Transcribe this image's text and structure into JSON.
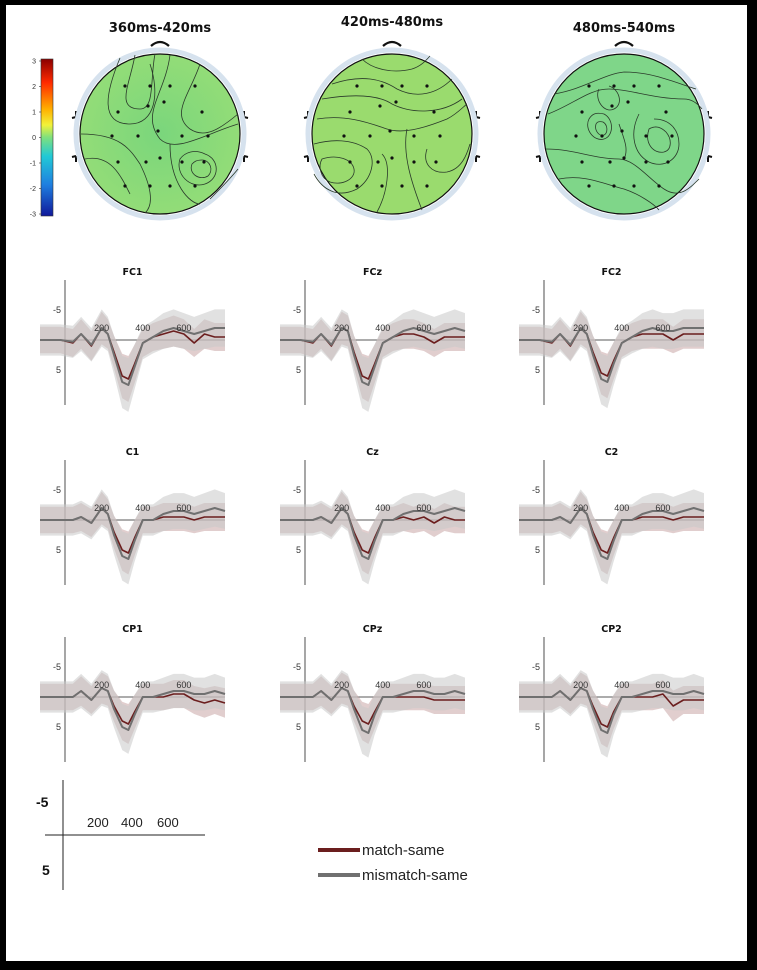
{
  "colors": {
    "match": "#6b1e1e",
    "mismatch": "#707070",
    "match_band": "#c9a6a6",
    "mismatch_band": "#c8c8c8",
    "head_fill": "#86d97a",
    "colorbar": [
      "#8b0000",
      "#ff2a00",
      "#ffb000",
      "#f2f23a",
      "#7ee07e",
      "#21c9d6",
      "#1f7fe0",
      "#10189a"
    ]
  },
  "topomaps": [
    {
      "title": "360ms-420ms"
    },
    {
      "title": "420ms-480ms"
    },
    {
      "title": "480ms-540ms"
    }
  ],
  "colorbar_ticks": [
    "3",
    "2",
    "1",
    "0",
    "-1",
    "-2",
    "-3"
  ],
  "chart_data": [
    {
      "type": "line",
      "title": "FC1",
      "x_ticks": [
        "200",
        "400",
        "600"
      ],
      "y_ticks": [
        "-5",
        "5"
      ],
      "xlim": [
        -100,
        800
      ],
      "ylim": [
        -9,
        9
      ],
      "y_inverted": true,
      "series": [
        {
          "name": "match-same",
          "x": [
            -100,
            0,
            60,
            100,
            150,
            200,
            230,
            260,
            300,
            330,
            360,
            400,
            450,
            500,
            550,
            600,
            650,
            700,
            750,
            800
          ],
          "values": [
            0,
            0,
            0.5,
            -1,
            1,
            -2,
            -1,
            2,
            6,
            6.5,
            4,
            0.5,
            -0.5,
            -1,
            -1.5,
            -1,
            0.5,
            -1,
            -0.5,
            -0.5
          ]
        },
        {
          "name": "mismatch-same",
          "x": [
            -100,
            0,
            60,
            100,
            150,
            200,
            230,
            260,
            300,
            330,
            360,
            400,
            450,
            500,
            550,
            600,
            650,
            700,
            750,
            800
          ],
          "values": [
            0,
            0,
            0.3,
            -1,
            0.8,
            -2,
            -1,
            2.5,
            7,
            7.5,
            4.5,
            0.5,
            -0.5,
            -1.5,
            -2,
            -1.5,
            -1,
            -1.5,
            -2,
            -2
          ]
        }
      ]
    },
    {
      "type": "line",
      "title": "FCz",
      "x_ticks": [
        "200",
        "400",
        "600"
      ],
      "y_ticks": [
        "-5",
        "5"
      ],
      "xlim": [
        -100,
        800
      ],
      "ylim": [
        -9,
        9
      ],
      "y_inverted": true,
      "series": [
        {
          "name": "match-same",
          "x": [
            -100,
            0,
            60,
            100,
            150,
            200,
            230,
            260,
            300,
            330,
            360,
            400,
            450,
            500,
            550,
            600,
            650,
            700,
            750,
            800
          ],
          "values": [
            0,
            0,
            0.5,
            -1,
            1,
            -2,
            -1.5,
            2,
            6,
            6.5,
            4,
            0.5,
            -0.5,
            -1,
            -1,
            -0.5,
            0.5,
            -0.5,
            -0.5,
            -0.5
          ]
        },
        {
          "name": "mismatch-same",
          "x": [
            -100,
            0,
            60,
            100,
            150,
            200,
            230,
            260,
            300,
            330,
            360,
            400,
            450,
            500,
            550,
            600,
            650,
            700,
            750,
            800
          ],
          "values": [
            0,
            0,
            0.3,
            -1,
            0.8,
            -2,
            -1.5,
            2.5,
            7,
            7.5,
            4.5,
            0.5,
            -0.5,
            -1.5,
            -2,
            -1.5,
            -1,
            -1.5,
            -2,
            -1.5
          ]
        }
      ]
    },
    {
      "type": "line",
      "title": "FC2",
      "x_ticks": [
        "200",
        "400",
        "600"
      ],
      "y_ticks": [
        "-5",
        "5"
      ],
      "xlim": [
        -100,
        800
      ],
      "ylim": [
        -9,
        9
      ],
      "y_inverted": true,
      "series": [
        {
          "name": "match-same",
          "x": [
            -100,
            0,
            60,
            100,
            150,
            200,
            230,
            260,
            300,
            330,
            360,
            400,
            450,
            500,
            550,
            600,
            650,
            700,
            750,
            800
          ],
          "values": [
            0,
            0,
            0.5,
            -1,
            1,
            -2,
            -1,
            2,
            5.5,
            6,
            3.5,
            0.5,
            -0.5,
            -1,
            -1,
            -1,
            0,
            -1,
            -1,
            -1
          ]
        },
        {
          "name": "mismatch-same",
          "x": [
            -100,
            0,
            60,
            100,
            150,
            200,
            230,
            260,
            300,
            330,
            360,
            400,
            450,
            500,
            550,
            600,
            650,
            700,
            750,
            800
          ],
          "values": [
            0,
            0,
            0.3,
            -1,
            0.8,
            -2,
            -1,
            2.5,
            6.5,
            7,
            4,
            0.5,
            -0.5,
            -1.5,
            -2,
            -1.5,
            -1.5,
            -2,
            -2,
            -2
          ]
        }
      ]
    },
    {
      "type": "line",
      "title": "C1",
      "x_ticks": [
        "200",
        "400",
        "600"
      ],
      "y_ticks": [
        "-5",
        "5"
      ],
      "xlim": [
        -100,
        800
      ],
      "ylim": [
        -9,
        9
      ],
      "y_inverted": true,
      "series": [
        {
          "name": "match-same",
          "x": [
            -100,
            0,
            60,
            100,
            150,
            200,
            230,
            260,
            300,
            330,
            360,
            400,
            450,
            500,
            550,
            600,
            650,
            700,
            750,
            800
          ],
          "values": [
            0,
            0,
            0,
            -0.5,
            0.5,
            -2,
            -1,
            2,
            5,
            5.5,
            3,
            0,
            0,
            -0.5,
            -0.5,
            -0.5,
            0,
            -0.5,
            -0.5,
            -0.5
          ]
        },
        {
          "name": "mismatch-same",
          "x": [
            -100,
            0,
            60,
            100,
            150,
            200,
            230,
            260,
            300,
            330,
            360,
            400,
            450,
            500,
            550,
            600,
            650,
            700,
            750,
            800
          ],
          "values": [
            0,
            0,
            0,
            -0.5,
            0.5,
            -2,
            -1,
            2.5,
            6,
            6.5,
            3.5,
            0,
            0,
            -1,
            -1.5,
            -1.5,
            -1,
            -1.5,
            -2,
            -1.5
          ]
        }
      ]
    },
    {
      "type": "line",
      "title": "Cz",
      "x_ticks": [
        "200",
        "400",
        "600"
      ],
      "y_ticks": [
        "-5",
        "5"
      ],
      "xlim": [
        -100,
        800
      ],
      "ylim": [
        -9,
        9
      ],
      "y_inverted": true,
      "series": [
        {
          "name": "match-same",
          "x": [
            -100,
            0,
            60,
            100,
            150,
            200,
            230,
            260,
            300,
            330,
            360,
            400,
            450,
            500,
            550,
            600,
            650,
            700,
            750,
            800
          ],
          "values": [
            0,
            0,
            0,
            -0.5,
            0.5,
            -2,
            -1,
            2,
            5,
            5.5,
            3,
            0,
            0,
            -0.5,
            0,
            -0.5,
            0.5,
            -0.5,
            0,
            0
          ]
        },
        {
          "name": "mismatch-same",
          "x": [
            -100,
            0,
            60,
            100,
            150,
            200,
            230,
            260,
            300,
            330,
            360,
            400,
            450,
            500,
            550,
            600,
            650,
            700,
            750,
            800
          ],
          "values": [
            0,
            0,
            0,
            -0.5,
            0.5,
            -2,
            -1,
            2.5,
            6,
            6.5,
            3.5,
            0,
            0,
            -1,
            -1.5,
            -1.5,
            -1,
            -1.5,
            -2,
            -1.5
          ]
        }
      ]
    },
    {
      "type": "line",
      "title": "C2",
      "x_ticks": [
        "200",
        "400",
        "600"
      ],
      "y_ticks": [
        "-5",
        "5"
      ],
      "xlim": [
        -100,
        800
      ],
      "ylim": [
        -9,
        9
      ],
      "y_inverted": true,
      "series": [
        {
          "name": "match-same",
          "x": [
            -100,
            0,
            60,
            100,
            150,
            200,
            230,
            260,
            300,
            330,
            360,
            400,
            450,
            500,
            550,
            600,
            650,
            700,
            750,
            800
          ],
          "values": [
            0,
            0,
            0,
            -0.5,
            0.5,
            -2,
            -1,
            2,
            5,
            5.5,
            3,
            0,
            0,
            -0.5,
            -0.5,
            -0.5,
            0,
            -0.5,
            -0.5,
            -0.5
          ]
        },
        {
          "name": "mismatch-same",
          "x": [
            -100,
            0,
            60,
            100,
            150,
            200,
            230,
            260,
            300,
            330,
            360,
            400,
            450,
            500,
            550,
            600,
            650,
            700,
            750,
            800
          ],
          "values": [
            0,
            0,
            0,
            -0.5,
            0.5,
            -2,
            -1,
            2.5,
            6,
            6.5,
            3.5,
            0,
            0,
            -1,
            -1.5,
            -1.5,
            -1,
            -1.5,
            -2,
            -1.5
          ]
        }
      ]
    },
    {
      "type": "line",
      "title": "CP1",
      "x_ticks": [
        "200",
        "400",
        "600"
      ],
      "y_ticks": [
        "-5",
        "5"
      ],
      "xlim": [
        -100,
        800
      ],
      "ylim": [
        -9,
        9
      ],
      "y_inverted": true,
      "series": [
        {
          "name": "match-same",
          "x": [
            -100,
            0,
            60,
            100,
            150,
            200,
            230,
            260,
            300,
            330,
            360,
            400,
            450,
            500,
            550,
            600,
            650,
            700,
            750,
            800
          ],
          "values": [
            0,
            0,
            0,
            -1,
            0.5,
            -1.5,
            -1,
            1.5,
            4,
            4.5,
            2.5,
            0,
            0,
            0,
            -0.5,
            -0.5,
            0.5,
            1,
            0.5,
            1
          ]
        },
        {
          "name": "mismatch-same",
          "x": [
            -100,
            0,
            60,
            100,
            150,
            200,
            230,
            260,
            300,
            330,
            360,
            400,
            450,
            500,
            550,
            600,
            650,
            700,
            750,
            800
          ],
          "values": [
            0,
            0,
            0,
            -1,
            0.5,
            -1.5,
            -1,
            2,
            5,
            5.5,
            3,
            0,
            0,
            -0.5,
            -1,
            -1,
            -0.5,
            -0.5,
            -1,
            -0.5
          ]
        }
      ]
    },
    {
      "type": "line",
      "title": "CPz",
      "x_ticks": [
        "200",
        "400",
        "600"
      ],
      "y_ticks": [
        "-5",
        "5"
      ],
      "xlim": [
        -100,
        800
      ],
      "ylim": [
        -9,
        9
      ],
      "y_inverted": true,
      "series": [
        {
          "name": "match-same",
          "x": [
            -100,
            0,
            60,
            100,
            150,
            200,
            230,
            260,
            300,
            330,
            360,
            400,
            450,
            500,
            550,
            600,
            650,
            700,
            750,
            800
          ],
          "values": [
            0,
            0,
            0,
            -1,
            0.5,
            -1.5,
            -1,
            1.5,
            4,
            4.5,
            2.5,
            0,
            0,
            0,
            0,
            0,
            0.5,
            0.5,
            0.5,
            0.5
          ]
        },
        {
          "name": "mismatch-same",
          "x": [
            -100,
            0,
            60,
            100,
            150,
            200,
            230,
            260,
            300,
            330,
            360,
            400,
            450,
            500,
            550,
            600,
            650,
            700,
            750,
            800
          ],
          "values": [
            0,
            0,
            0,
            -1,
            0.5,
            -1.5,
            -1,
            2,
            5.5,
            6,
            3,
            0,
            0,
            -0.5,
            -1,
            -1,
            -0.5,
            -0.5,
            -1,
            -0.5
          ]
        }
      ]
    },
    {
      "type": "line",
      "title": "CP2",
      "x_ticks": [
        "200",
        "400",
        "600"
      ],
      "y_ticks": [
        "-5",
        "5"
      ],
      "xlim": [
        -100,
        800
      ],
      "ylim": [
        -9,
        9
      ],
      "y_inverted": true,
      "series": [
        {
          "name": "match-same",
          "x": [
            -100,
            0,
            60,
            100,
            150,
            200,
            230,
            260,
            300,
            330,
            360,
            400,
            450,
            500,
            550,
            600,
            650,
            700,
            750,
            800
          ],
          "values": [
            0,
            0,
            0,
            -1,
            0.5,
            -1.5,
            -1,
            1.5,
            4.5,
            5,
            2.5,
            0,
            0,
            0,
            0,
            -0.5,
            1.5,
            0.5,
            0.5,
            0.5
          ]
        },
        {
          "name": "mismatch-same",
          "x": [
            -100,
            0,
            60,
            100,
            150,
            200,
            230,
            260,
            300,
            330,
            360,
            400,
            450,
            500,
            550,
            600,
            650,
            700,
            750,
            800
          ],
          "values": [
            0,
            0,
            0,
            -1,
            0.5,
            -1.5,
            -1,
            2,
            5.5,
            6,
            3,
            0,
            0,
            -0.5,
            -1,
            -1,
            -0.5,
            -0.5,
            -1,
            -0.5
          ]
        }
      ]
    }
  ],
  "scale_legend": {
    "x_ticks": [
      "200",
      "400",
      "600"
    ],
    "y_ticks": [
      "-5",
      "5"
    ]
  },
  "legend": [
    {
      "label": "match-same",
      "color": "#6b1e1e"
    },
    {
      "label": "mismatch-same",
      "color": "#707070"
    }
  ]
}
